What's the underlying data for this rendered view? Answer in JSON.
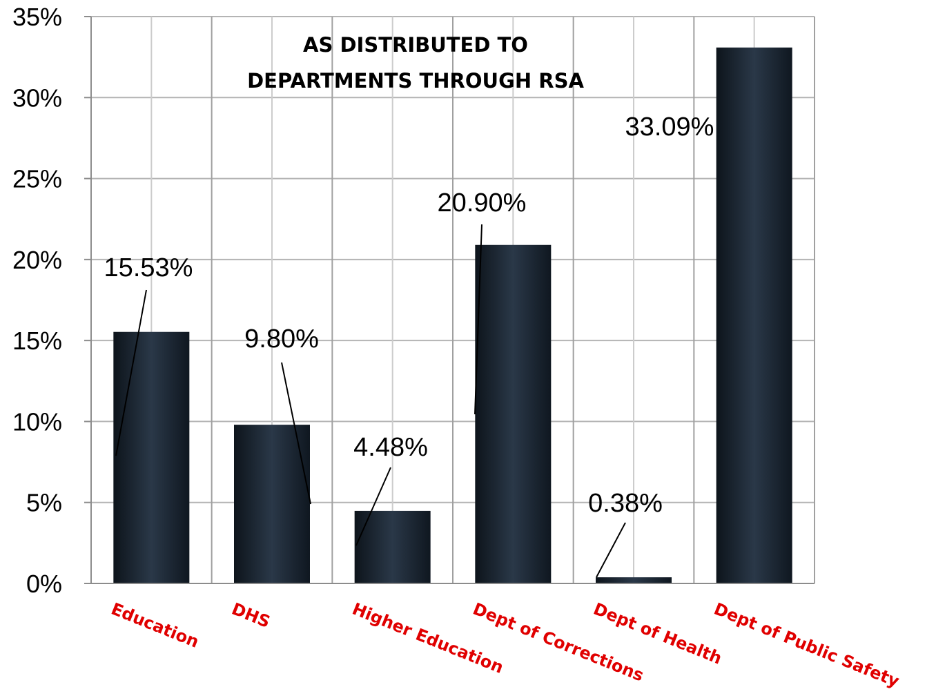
{
  "chart_data": {
    "type": "bar",
    "title_lines": [
      "AS DISTRIBUTED TO",
      "DEPARTMENTS THROUGH RSA"
    ],
    "categories": [
      "Education",
      "DHS",
      "Higher Education",
      "Dept of Corrections",
      "Dept of Health",
      "Dept of Public Safety"
    ],
    "values": [
      15.53,
      9.8,
      4.48,
      20.9,
      0.38,
      33.09
    ],
    "data_labels": [
      "15.53%",
      "9.80%",
      "4.48%",
      "20.90%",
      "0.38%",
      "33.09%"
    ],
    "ylim": [
      0,
      35
    ],
    "yticks": [
      0,
      5,
      10,
      15,
      20,
      25,
      30,
      35
    ],
    "ytick_labels": [
      "0%",
      "5%",
      "10%",
      "15%",
      "20%",
      "25%",
      "30%",
      "35%"
    ],
    "grid": true,
    "colors": {
      "bar": "#1b2633",
      "bar_highlight": "#2c3a4b",
      "grid": "#b4b4b4",
      "category_label": "#e00000"
    }
  }
}
